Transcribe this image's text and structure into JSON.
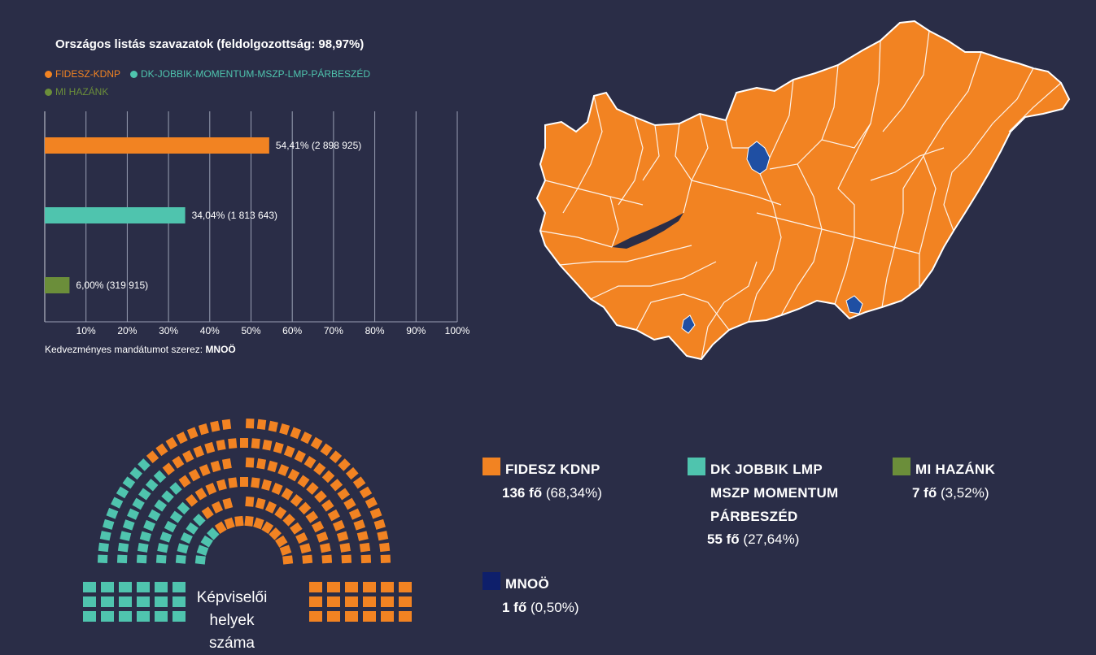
{
  "chart_data": [
    {
      "type": "bar",
      "orientation": "horizontal",
      "title": "Országos listás szavazatok (feldolgozottság: 98,97%)",
      "legend": [
        {
          "label": "FIDESZ-KDNP",
          "color": "#f28322"
        },
        {
          "label": "DK-JOBBIK-MOMENTUM-MSZP-LMP-PÁRBESZÉD",
          "color": "#4fc4ae"
        },
        {
          "label": "MI HAZÁNK",
          "color": "#6b8e3a"
        }
      ],
      "categories": [
        "FIDESZ-KDNP",
        "DK-JOBBIK-MOMENTUM-MSZP-LMP-PÁRBESZÉD",
        "MI HAZÁNK"
      ],
      "values": [
        54.41,
        34.04,
        6.0
      ],
      "data_labels": [
        "54,41% (2 898 925)",
        "34,04% (1 813 643)",
        "6,00% (319 915)"
      ],
      "colors": [
        "#f28322",
        "#4fc4ae",
        "#6b8e3a"
      ],
      "xlim": [
        0,
        100
      ],
      "xticks": [
        "10%",
        "20%",
        "30%",
        "40%",
        "50%",
        "60%",
        "70%",
        "80%",
        "90%",
        "100%"
      ],
      "grid": "vertical",
      "footnote_prefix": "Kedvezményes mandátumot szerez:",
      "footnote_value": "MNOÖ"
    },
    {
      "type": "parliament",
      "title": "Képviselői helyek száma",
      "series": [
        {
          "name": "DK JOBBIK LMP MSZP MOMENTUM PÁRBESZÉD",
          "seats": 55,
          "percent": "27,64%",
          "color": "#4fc4ae"
        },
        {
          "name": "FIDESZ KDNP",
          "seats": 136,
          "percent": "68,34%",
          "color": "#f28322"
        },
        {
          "name": "MI HAZÁNK",
          "seats": 7,
          "percent": "3,52%",
          "color": "#6b8e3a"
        },
        {
          "name": "MNOÖ",
          "seats": 1,
          "percent": "0,50%",
          "color": "#0e1f6b"
        }
      ]
    }
  ],
  "map": {
    "base_color": "#f28322",
    "highlight_color": "#1f4fa3",
    "border_color": "#ffffff"
  },
  "parliament_label": "Képviselői helyek száma",
  "seat_legend": [
    {
      "name_lines": [
        "FIDESZ KDNP"
      ],
      "count": "136 fő",
      "percent": "(68,34%)",
      "color": "#f28322"
    },
    {
      "name_lines": [
        "DK JOBBIK LMP",
        "MSZP MOMENTUM",
        "PÁRBESZÉD"
      ],
      "count": "55 fő",
      "percent": "(27,64%)",
      "color": "#4fc4ae"
    },
    {
      "name_lines": [
        "MI HAZÁNK"
      ],
      "count": "7 fő",
      "percent": "(3,52%)",
      "color": "#6b8e3a"
    },
    {
      "name_lines": [
        "MNOÖ"
      ],
      "count": "1 fő",
      "percent": "(0,50%)",
      "color": "#0e1f6b"
    }
  ]
}
